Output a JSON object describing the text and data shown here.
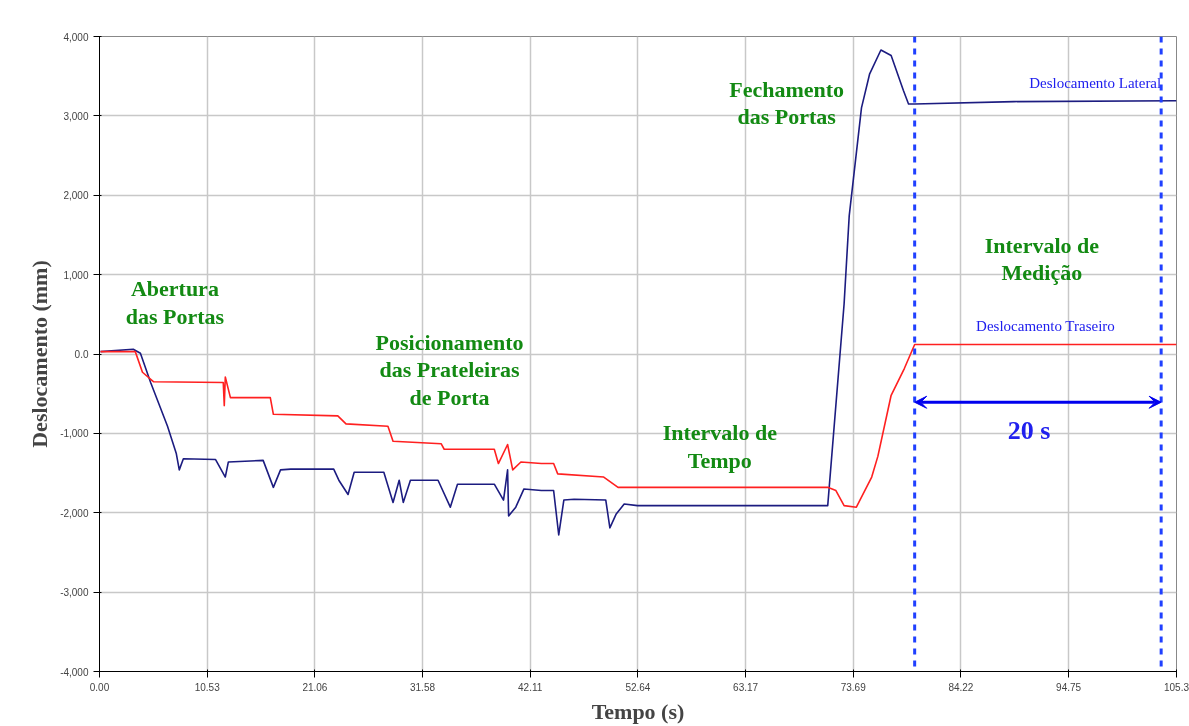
{
  "chart_data": {
    "type": "line",
    "xlabel": "Tempo (s)",
    "ylabel": "Deslocamento (mm)",
    "xlim": [
      0,
      105.3
    ],
    "ylim": [
      -4000,
      4000
    ],
    "xticks": [
      {
        "value": 0,
        "label": "0.00"
      },
      10.53,
      21.06,
      31.58,
      42.11,
      52.64,
      63.17,
      73.69,
      84.22,
      94.75,
      105.3
    ],
    "yticks": [
      {
        "value": -4000,
        "label": "-4,000"
      },
      {
        "value": -3000,
        "label": "-3,000"
      },
      {
        "value": -2000,
        "label": "-2,000"
      },
      {
        "value": -1000,
        "label": "-1,000"
      },
      {
        "value": 0,
        "label": "0.0"
      },
      {
        "value": 1000,
        "label": "1,000"
      },
      {
        "value": 2000,
        "label": "2,000"
      },
      {
        "value": 3000,
        "label": "3,000"
      },
      {
        "value": 4000,
        "label": "4,000"
      }
    ],
    "grid": true,
    "legend": false,
    "marker": "none",
    "line_style": "solid",
    "series": [
      {
        "name": "Deslocamento Lateral",
        "color": "#1c1c80",
        "x": [
          0.1,
          3.3,
          4.0,
          5.0,
          6.65,
          7.5,
          7.8,
          8.2,
          11.35,
          12.3,
          12.6,
          16.0,
          17.0,
          17.7,
          18.7,
          22.9,
          23.4,
          24.3,
          24.9,
          27.8,
          28.7,
          29.3,
          29.7,
          30.4,
          33.1,
          34.3,
          35.0,
          38.6,
          39.5,
          39.9,
          40.0,
          40.7,
          41.5,
          43.2,
          44.4,
          44.9,
          45.4,
          46.4,
          49.5,
          49.9,
          50.5,
          51.3,
          52.6,
          71.2,
          72.8,
          73.3,
          74.5,
          75.3,
          76.4,
          77.4,
          78.6,
          79.1,
          79.7,
          89.4,
          105.3
        ],
        "values": [
          30,
          60,
          10,
          -360,
          -910,
          -1250,
          -1460,
          -1320,
          -1330,
          -1550,
          -1360,
          -1340,
          -1680,
          -1460,
          -1450,
          -1450,
          -1590,
          -1770,
          -1490,
          -1490,
          -1870,
          -1590,
          -1870,
          -1590,
          -1590,
          -1930,
          -1640,
          -1640,
          -1840,
          -1460,
          -2040,
          -1930,
          -1700,
          -1720,
          -1720,
          -2280,
          -1840,
          -1830,
          -1840,
          -2190,
          -2020,
          -1890,
          -1910,
          -1910,
          630,
          1740,
          3100,
          3530,
          3830,
          3760,
          3320,
          3150,
          3150,
          3180,
          3190
        ]
      },
      {
        "name": "Deslocamento Traseiro",
        "color": "#ff2020",
        "x": [
          0.1,
          3.5,
          4.2,
          5.3,
          12.1,
          12.2,
          12.3,
          12.8,
          16.7,
          17.0,
          23.3,
          24.1,
          28.2,
          28.7,
          33.4,
          33.7,
          38.6,
          39.0,
          39.9,
          40.4,
          41.2,
          43.2,
          44.4,
          44.8,
          49.3,
          50.7,
          71.2,
          72.0,
          72.8,
          74.0,
          75.5,
          76.1,
          77.4,
          78.7,
          79.7,
          105.3
        ],
        "values": [
          30,
          30,
          -230,
          -350,
          -360,
          -650,
          -290,
          -550,
          -550,
          -760,
          -780,
          -880,
          -910,
          -1100,
          -1130,
          -1200,
          -1200,
          -1380,
          -1140,
          -1460,
          -1360,
          -1380,
          -1380,
          -1510,
          -1550,
          -1680,
          -1680,
          -1720,
          -1910,
          -1930,
          -1550,
          -1290,
          -520,
          -180,
          120,
          120
        ]
      }
    ],
    "ref_lines": [
      {
        "axis": "x",
        "value": 79.7,
        "color": "#2040ff",
        "line_style": "dashed"
      },
      {
        "axis": "x",
        "value": 103.8,
        "color": "#2040ff",
        "line_style": "dashed"
      }
    ],
    "annotations": [
      "Abertura\ndas Portas",
      "Posicionamento\ndas Prateleiras\nde Porta",
      "Intervalo de\nTempo",
      "Fechamento\ndas Portas",
      "Intervalo de\nMedição",
      "20 s"
    ]
  }
}
